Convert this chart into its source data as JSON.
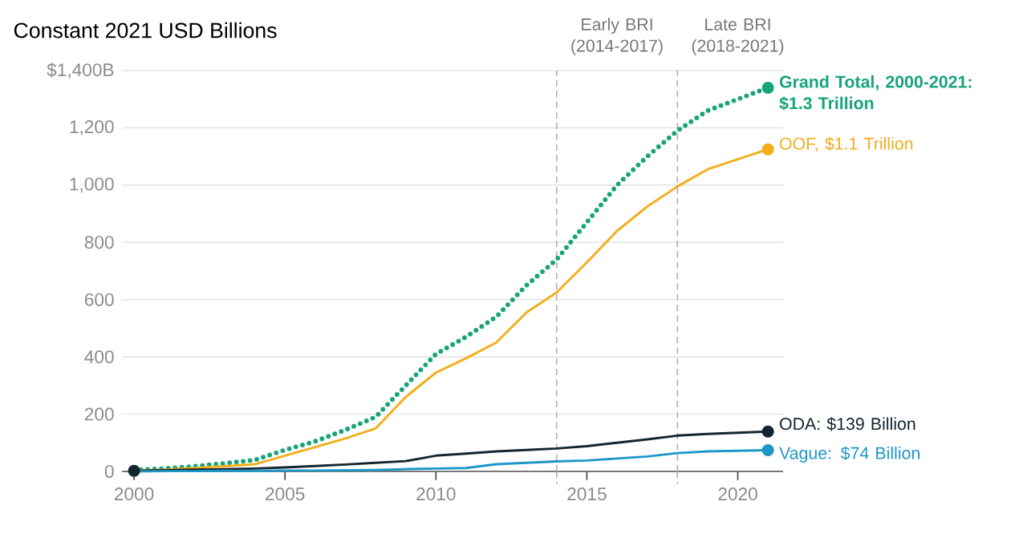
{
  "chart_data": {
    "type": "line",
    "title": "Constant 2021 USD Billions",
    "x": [
      2000,
      2001,
      2002,
      2003,
      2004,
      2005,
      2006,
      2007,
      2008,
      2009,
      2010,
      2011,
      2012,
      2013,
      2014,
      2015,
      2016,
      2017,
      2018,
      2019,
      2020,
      2021
    ],
    "series": [
      {
        "name": "Grand Total, 2000-2021: $1.3 Trillion",
        "color": "#17a47b",
        "line_style": "dotted",
        "values": [
          5,
          10,
          18,
          28,
          40,
          75,
          105,
          145,
          190,
          300,
          410,
          470,
          540,
          650,
          740,
          870,
          1000,
          1100,
          1190,
          1260,
          1300,
          1340
        ]
      },
      {
        "name": "OOF, $1.1 Trillion",
        "color": "#f2ae1c",
        "line_style": "solid",
        "values": [
          3,
          6,
          12,
          18,
          25,
          55,
          85,
          115,
          150,
          260,
          345,
          395,
          450,
          555,
          625,
          730,
          840,
          925,
          995,
          1055,
          1090,
          1125
        ]
      },
      {
        "name": "ODA: $139 Billion",
        "color": "#13262f",
        "line_style": "solid",
        "values": [
          2,
          4,
          6,
          8,
          10,
          14,
          19,
          24,
          30,
          36,
          55,
          62,
          70,
          75,
          80,
          88,
          100,
          112,
          125,
          131,
          135,
          139
        ]
      },
      {
        "name": "Vague: $74 Billion",
        "color": "#1e97c8",
        "line_style": "solid",
        "values": [
          0,
          1,
          1,
          2,
          2,
          3,
          3,
          4,
          5,
          8,
          10,
          12,
          25,
          30,
          35,
          38,
          45,
          52,
          64,
          70,
          72,
          74
        ]
      }
    ],
    "xlim": [
      1999.6,
      2021.5
    ],
    "ylim": [
      0,
      1400
    ],
    "xticks": [
      2000,
      2005,
      2010,
      2015,
      2020
    ],
    "yticks": [
      0,
      200,
      400,
      600,
      800,
      {
        "value": 1000,
        "label": "1,000"
      },
      {
        "value": 1200,
        "label": "1,200"
      },
      {
        "value": 1400,
        "label": "$1,400B"
      }
    ],
    "grid": "y",
    "ref_lines": [
      {
        "axis": "x",
        "value": 2014,
        "label": "Early BRI (2014-2017)",
        "color": "#b0b0b0",
        "line_style": "dashed"
      },
      {
        "axis": "x",
        "value": 2018,
        "label": "Late BRI (2018-2021)",
        "color": "#b0b0b0",
        "line_style": "dashed"
      }
    ]
  }
}
